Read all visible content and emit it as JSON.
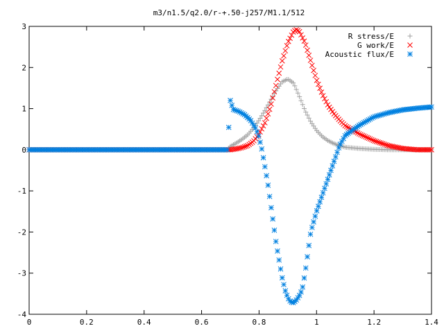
{
  "chart_data": {
    "type": "scatter",
    "title": "m3/n1.5/q2.0/r-+.50-j257/M1.1/512",
    "xlabel": "",
    "ylabel": "",
    "xlim": [
      0,
      1.4
    ],
    "ylim": [
      -4,
      3
    ],
    "grid": false,
    "legend_position": "top-right",
    "x_ticks": [
      "0",
      "0.2",
      "0.4",
      "0.6",
      "0.8",
      "1",
      "1.2",
      "1.4"
    ],
    "y_ticks": [
      "3",
      "2",
      "1",
      "0",
      "-1",
      "-2",
      "-3",
      "-4"
    ],
    "series": [
      {
        "name": "R stress/E",
        "marker": "plus",
        "color": "#a0a0a0",
        "x": [
          0.0,
          0.1,
          0.2,
          0.3,
          0.4,
          0.5,
          0.6,
          0.69,
          0.7,
          0.72,
          0.74,
          0.76,
          0.78,
          0.8,
          0.82,
          0.84,
          0.86,
          0.88,
          0.9,
          0.92,
          0.94,
          0.96,
          0.98,
          1.0,
          1.02,
          1.04,
          1.06,
          1.08,
          1.1,
          1.15,
          1.2,
          1.25,
          1.3,
          1.35,
          1.4
        ],
        "y": [
          0,
          0,
          0,
          0,
          0,
          0,
          0,
          0,
          0.08,
          0.16,
          0.25,
          0.36,
          0.52,
          0.72,
          0.95,
          1.2,
          1.45,
          1.65,
          1.72,
          1.62,
          1.3,
          0.95,
          0.68,
          0.47,
          0.32,
          0.22,
          0.15,
          0.1,
          0.06,
          0.03,
          0.01,
          0.0,
          0.0,
          0.0,
          0.0
        ]
      },
      {
        "name": "G work/E",
        "marker": "cross",
        "color": "#ff0000",
        "x": [
          0.0,
          0.1,
          0.2,
          0.3,
          0.4,
          0.5,
          0.6,
          0.69,
          0.7,
          0.72,
          0.74,
          0.76,
          0.78,
          0.8,
          0.82,
          0.84,
          0.86,
          0.88,
          0.9,
          0.92,
          0.93,
          0.94,
          0.96,
          0.98,
          1.0,
          1.02,
          1.04,
          1.06,
          1.08,
          1.1,
          1.15,
          1.2,
          1.25,
          1.3,
          1.35,
          1.4
        ],
        "y": [
          0,
          0,
          0,
          0,
          0,
          0,
          0,
          0,
          0.0,
          0.02,
          0.05,
          0.1,
          0.2,
          0.38,
          0.65,
          1.05,
          1.6,
          2.15,
          2.6,
          2.88,
          2.92,
          2.88,
          2.6,
          2.15,
          1.7,
          1.35,
          1.08,
          0.88,
          0.72,
          0.58,
          0.38,
          0.22,
          0.1,
          0.03,
          0.0,
          0.0
        ]
      },
      {
        "name": "Acoustic flux/E",
        "marker": "star",
        "color": "#0080e0",
        "x": [
          0.0,
          0.1,
          0.2,
          0.3,
          0.4,
          0.5,
          0.6,
          0.65,
          0.69,
          0.7,
          0.71,
          0.73,
          0.75,
          0.77,
          0.79,
          0.8,
          0.81,
          0.82,
          0.83,
          0.84,
          0.85,
          0.86,
          0.87,
          0.88,
          0.89,
          0.9,
          0.91,
          0.92,
          0.93,
          0.94,
          0.95,
          0.96,
          0.97,
          0.98,
          1.0,
          1.02,
          1.04,
          1.06,
          1.08,
          1.1,
          1.15,
          1.2,
          1.25,
          1.3,
          1.35,
          1.4
        ],
        "y": [
          0,
          0,
          0,
          0,
          0,
          0,
          0,
          0,
          0,
          1.2,
          0.98,
          0.93,
          0.85,
          0.72,
          0.5,
          0.3,
          0.0,
          -0.4,
          -0.8,
          -1.3,
          -1.8,
          -2.3,
          -2.7,
          -3.1,
          -3.4,
          -3.6,
          -3.7,
          -3.72,
          -3.65,
          -3.55,
          -3.4,
          -3.0,
          -2.5,
          -2.0,
          -1.5,
          -1.1,
          -0.7,
          -0.3,
          0.1,
          0.35,
          0.6,
          0.8,
          0.9,
          0.97,
          1.01,
          1.04
        ]
      }
    ]
  }
}
